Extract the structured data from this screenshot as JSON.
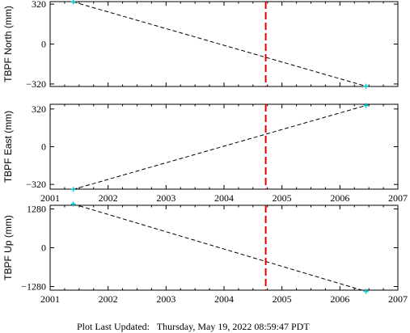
{
  "chart_data": [
    {
      "type": "line",
      "ylabel": "TBPF North (mm)",
      "xlim": [
        2001,
        2007
      ],
      "ylim": [
        -340,
        340
      ],
      "xticks": [
        2001,
        2002,
        2003,
        2004,
        2005,
        2006,
        2007
      ],
      "yticks": [
        320,
        0,
        -320
      ],
      "ytick_labels": [
        "320",
        "0",
        "−320"
      ],
      "show_xtick_labels": false,
      "grid": false,
      "series": [
        {
          "x": [
            2001.4,
            2006.45
          ],
          "y": [
            338,
            -338
          ],
          "style": "dashed",
          "color": "#000000"
        }
      ],
      "markers": [
        {
          "x": 2001.4,
          "y": 338
        },
        {
          "x": 2006.45,
          "y": -338
        }
      ],
      "marker_color": "#00c8d0",
      "vline": {
        "x": 2004.72,
        "color": "#e00000"
      }
    },
    {
      "type": "line",
      "ylabel": "TBPF East (mm)",
      "xlim": [
        2001,
        2007
      ],
      "ylim": [
        -360,
        360
      ],
      "xticks": [
        2001,
        2002,
        2003,
        2004,
        2005,
        2006,
        2007
      ],
      "yticks": [
        320,
        0,
        -320
      ],
      "ytick_labels": [
        "320",
        "0",
        "−320"
      ],
      "show_xtick_labels": true,
      "grid": false,
      "series": [
        {
          "x": [
            2001.4,
            2006.45
          ],
          "y": [
            -362,
            350
          ],
          "style": "dashed",
          "color": "#000000"
        }
      ],
      "markers": [
        {
          "x": 2001.4,
          "y": -362
        },
        {
          "x": 2006.45,
          "y": 350
        }
      ],
      "marker_color": "#00c8d0",
      "vline": {
        "x": 2004.72,
        "color": "#e00000"
      }
    },
    {
      "type": "line",
      "ylabel": "TBPF Up (mm)",
      "xlim": [
        2001,
        2007
      ],
      "ylim": [
        -1400,
        1400
      ],
      "xticks": [
        2001,
        2002,
        2003,
        2004,
        2005,
        2006,
        2007
      ],
      "yticks": [
        1280,
        0,
        -1280
      ],
      "ytick_labels": [
        "1280",
        "0",
        "−1280"
      ],
      "show_xtick_labels": true,
      "grid": false,
      "series": [
        {
          "x": [
            2001.4,
            2006.45
          ],
          "y": [
            1440,
            -1440
          ],
          "style": "dashed",
          "color": "#000000"
        }
      ],
      "markers": [
        {
          "x": 2001.4,
          "y": 1440
        },
        {
          "x": 2006.45,
          "y": -1440
        }
      ],
      "marker_color": "#00c8d0",
      "vline": {
        "x": 2004.72,
        "color": "#e00000"
      }
    }
  ],
  "footer": {
    "label": "Plot Last Updated:",
    "timestamp": "Thursday, May 19, 2022 08:59:47 PDT"
  }
}
